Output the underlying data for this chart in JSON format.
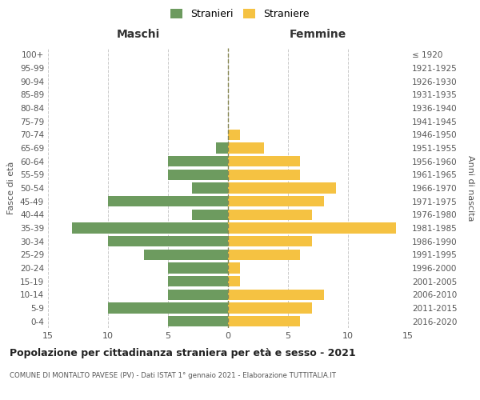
{
  "age_groups": [
    "0-4",
    "5-9",
    "10-14",
    "15-19",
    "20-24",
    "25-29",
    "30-34",
    "35-39",
    "40-44",
    "45-49",
    "50-54",
    "55-59",
    "60-64",
    "65-69",
    "70-74",
    "75-79",
    "80-84",
    "85-89",
    "90-94",
    "95-99",
    "100+"
  ],
  "birth_years": [
    "2016-2020",
    "2011-2015",
    "2006-2010",
    "2001-2005",
    "1996-2000",
    "1991-1995",
    "1986-1990",
    "1981-1985",
    "1976-1980",
    "1971-1975",
    "1966-1970",
    "1961-1965",
    "1956-1960",
    "1951-1955",
    "1946-1950",
    "1941-1945",
    "1936-1940",
    "1931-1935",
    "1926-1930",
    "1921-1925",
    "≤ 1920"
  ],
  "maschi": [
    5,
    10,
    5,
    5,
    5,
    7,
    10,
    13,
    3,
    10,
    3,
    5,
    5,
    1,
    0,
    0,
    0,
    0,
    0,
    0,
    0
  ],
  "femmine": [
    6,
    7,
    8,
    1,
    1,
    6,
    7,
    14,
    7,
    8,
    9,
    6,
    6,
    3,
    1,
    0,
    0,
    0,
    0,
    0,
    0
  ],
  "color_maschi": "#6d9b5f",
  "color_femmine": "#f5c242",
  "title": "Popolazione per cittadinanza straniera per età e sesso - 2021",
  "subtitle": "COMUNE DI MONTALTO PAVESE (PV) - Dati ISTAT 1° gennaio 2021 - Elaborazione TUTTITALIA.IT",
  "legend_maschi": "Stranieri",
  "legend_femmine": "Straniere",
  "label_maschi": "Maschi",
  "label_femmine": "Femmine",
  "ylabel_left": "Fasce di età",
  "ylabel_right": "Anni di nascita",
  "xlim": 15,
  "background_color": "#ffffff",
  "grid_color": "#cccccc",
  "bar_height": 0.8
}
